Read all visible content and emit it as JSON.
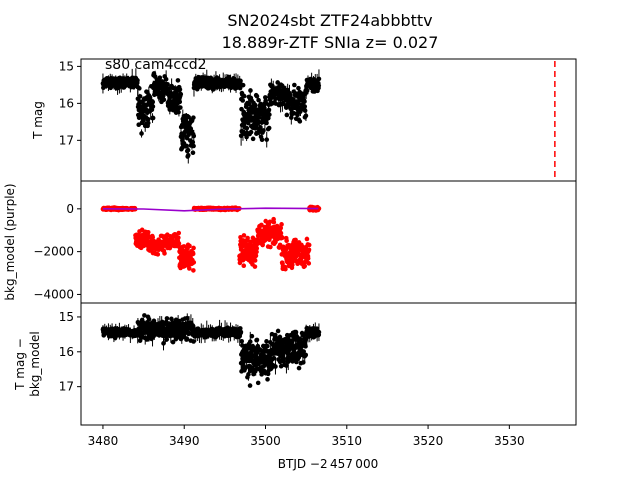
{
  "title_line1": "SN2024sbt  ZTF24abbbttv",
  "title_line2": "18.889r-ZTF SNIa z= 0.027",
  "annotation": "s80 cam4ccd2",
  "xlabel": "BTJD −2 457 000",
  "colors": {
    "data": "#000000",
    "bkg": "#ff0000",
    "model": "#9900cc",
    "marker": "#ff0000"
  },
  "chart_data": [
    {
      "name": "top",
      "type": "scatter",
      "ylabel": "T mag",
      "xlim": [
        3477.3,
        3538.2
      ],
      "ylim": [
        18.1,
        14.8
      ],
      "inverted_y": true,
      "yticks": [
        15,
        16,
        17
      ],
      "x_ticks": [
        3480,
        3490,
        3500,
        3510,
        3520,
        3530
      ],
      "vline_x": 3535.6,
      "series": [
        {
          "segments": [
            {
              "x0": 3480.0,
              "x1": 3484.3,
              "base": 15.45,
              "noise": 0.12
            },
            {
              "x0": 3484.3,
              "x1": 3486.2,
              "base": 16.1,
              "noise": 0.45
            },
            {
              "x0": 3486.2,
              "x1": 3488.0,
              "base": 15.6,
              "noise": 0.25
            },
            {
              "x0": 3488.0,
              "x1": 3489.6,
              "base": 15.9,
              "noise": 0.35
            },
            {
              "x0": 3489.6,
              "x1": 3491.2,
              "base": 16.8,
              "noise": 0.55
            },
            {
              "x0": 3491.2,
              "x1": 3497.0,
              "base": 15.45,
              "noise": 0.12
            },
            {
              "x0": 3497.0,
              "x1": 3500.5,
              "base": 16.3,
              "noise": 0.55
            },
            {
              "x0": 3500.5,
              "x1": 3502.5,
              "base": 15.7,
              "noise": 0.25
            },
            {
              "x0": 3502.5,
              "x1": 3505.0,
              "base": 16.0,
              "noise": 0.4
            },
            {
              "x0": 3505.0,
              "x1": 3506.6,
              "base": 15.5,
              "noise": 0.15
            }
          ]
        }
      ]
    },
    {
      "name": "middle",
      "type": "scatter",
      "ylabel": "bkg_model (purple)",
      "xlim": [
        3477.3,
        3538.2
      ],
      "ylim": [
        -4400,
        1300
      ],
      "yticks": [
        0,
        -2000,
        -4000
      ],
      "ytick_labels": [
        "0",
        "−2000",
        "−4000"
      ],
      "series": [
        {
          "name": "bkg",
          "segments": [
            {
              "x0": 3480.0,
              "x1": 3484.0,
              "base": 0,
              "noise": 40
            },
            {
              "x0": 3484.0,
              "x1": 3485.6,
              "base": -1400,
              "noise": 300
            },
            {
              "x0": 3485.6,
              "x1": 3487.6,
              "base": -1700,
              "noise": 350
            },
            {
              "x0": 3487.6,
              "x1": 3489.4,
              "base": -1500,
              "noise": 300
            },
            {
              "x0": 3489.4,
              "x1": 3491.2,
              "base": -2300,
              "noise": 500
            },
            {
              "x0": 3491.2,
              "x1": 3496.8,
              "base": 0,
              "noise": 40
            },
            {
              "x0": 3496.8,
              "x1": 3499.0,
              "base": -1900,
              "noise": 600
            },
            {
              "x0": 3499.0,
              "x1": 3502.0,
              "base": -1200,
              "noise": 450
            },
            {
              "x0": 3502.0,
              "x1": 3505.4,
              "base": -2100,
              "noise": 550
            },
            {
              "x0": 3505.4,
              "x1": 3506.6,
              "base": 0,
              "noise": 80
            }
          ]
        },
        {
          "name": "model",
          "points": [
            [
              3480,
              0
            ],
            [
              3485,
              -10
            ],
            [
              3490,
              -90
            ],
            [
              3495,
              -10
            ],
            [
              3500,
              30
            ],
            [
              3506.5,
              10
            ]
          ]
        }
      ]
    },
    {
      "name": "bottom",
      "type": "scatter",
      "ylabel": "T mag −\nbkg_model",
      "xlim": [
        3477.3,
        3538.2
      ],
      "ylim": [
        18.1,
        14.6
      ],
      "inverted_y": true,
      "yticks": [
        15,
        16,
        17
      ],
      "series": [
        {
          "segments": [
            {
              "x0": 3480.0,
              "x1": 3484.3,
              "base": 15.45,
              "noise": 0.1
            },
            {
              "x0": 3484.3,
              "x1": 3491.2,
              "base": 15.35,
              "noise": 0.25
            },
            {
              "x0": 3491.2,
              "x1": 3497.0,
              "base": 15.45,
              "noise": 0.1
            },
            {
              "x0": 3497.0,
              "x1": 3501.0,
              "base": 16.2,
              "noise": 0.5
            },
            {
              "x0": 3501.0,
              "x1": 3505.0,
              "base": 15.9,
              "noise": 0.4
            },
            {
              "x0": 3505.0,
              "x1": 3506.6,
              "base": 15.45,
              "noise": 0.12
            }
          ]
        }
      ]
    }
  ]
}
